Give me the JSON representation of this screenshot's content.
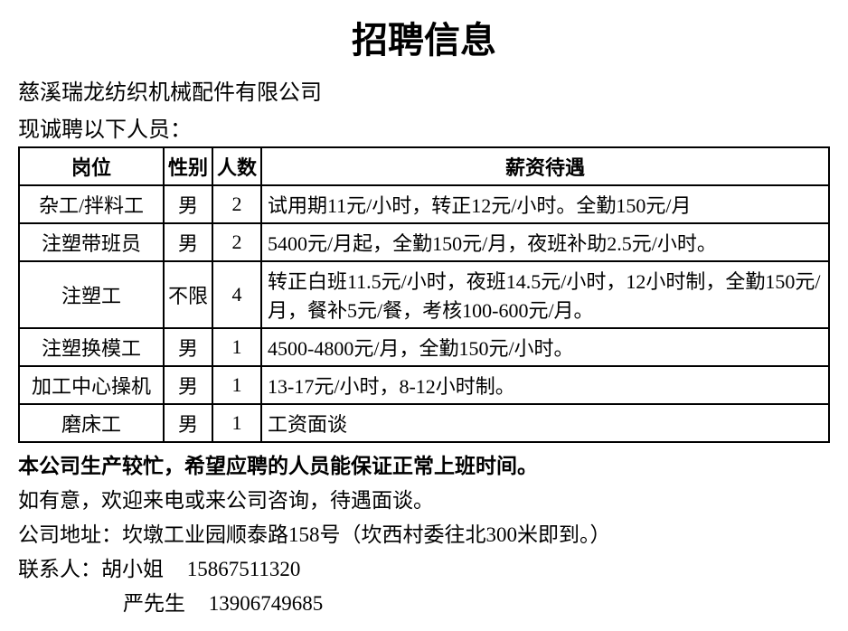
{
  "title": "招聘信息",
  "company": "慈溪瑞龙纺织机械配件有限公司",
  "intro": "现诚聘以下人员：",
  "table": {
    "headers": {
      "position": "岗位",
      "gender": "性别",
      "count": "人数",
      "salary": "薪资待遇"
    },
    "rows": [
      {
        "position": "杂工/拌料工",
        "gender": "男",
        "count": "2",
        "salary": "试用期11元/小时，转正12元/小时。全勤150元/月"
      },
      {
        "position": "注塑带班员",
        "gender": "男",
        "count": "2",
        "salary": "5400元/月起，全勤150元/月，夜班补助2.5元/小时。"
      },
      {
        "position": "注塑工",
        "gender": "不限",
        "count": "4",
        "salary": "转正白班11.5元/小时，夜班14.5元/小时，12小时制，全勤150元/月，餐补5元/餐，考核100-600元/月。"
      },
      {
        "position": "注塑换模工",
        "gender": "男",
        "count": "1",
        "salary": "4500-4800元/月，全勤150元/小时。"
      },
      {
        "position": "加工中心操机",
        "gender": "男",
        "count": "1",
        "salary": "13-17元/小时，8-12小时制。"
      },
      {
        "position": "磨床工",
        "gender": "男",
        "count": "1",
        "salary": "工资面谈"
      }
    ]
  },
  "note_bold": "本公司生产较忙，希望应聘的人员能保证正常上班时间。",
  "footer_contact": "如有意，欢迎来电或来公司咨询，待遇面谈。",
  "footer_address": "公司地址：坎墩工业园顺泰路158号（坎西村委往北300米即到。）",
  "contact_label": "联系人：",
  "contacts": [
    {
      "name": "胡小姐",
      "phone": "15867511320"
    },
    {
      "name": "严先生",
      "phone": "13906749685"
    }
  ],
  "styles": {
    "background": "#ffffff",
    "text_color": "#000000",
    "border_color": "#000000",
    "title_fontsize": 40,
    "body_fontsize": 24,
    "table_fontsize": 22,
    "font_family": "SimSun"
  }
}
